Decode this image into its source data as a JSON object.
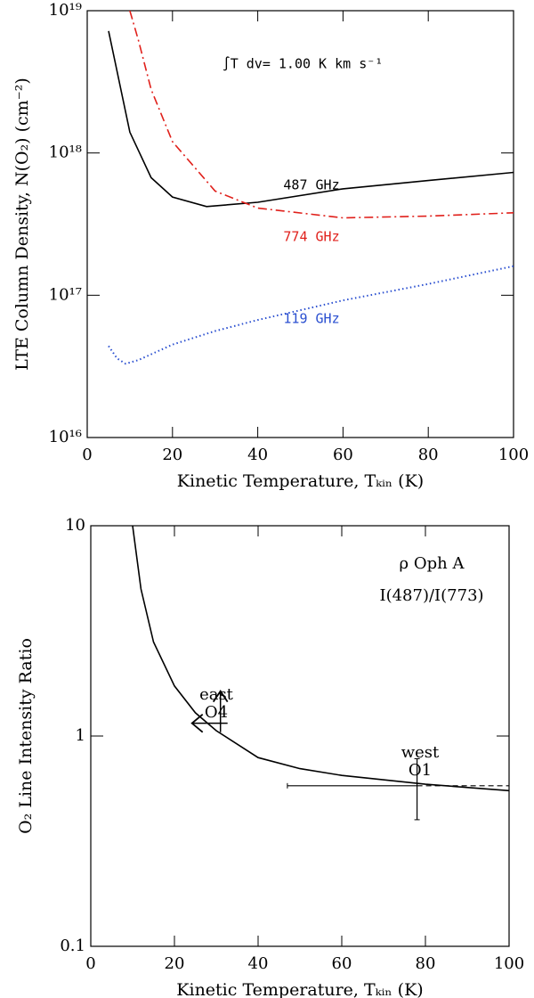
{
  "chart_data": [
    {
      "type": "line",
      "log_y": true,
      "xlabel": "Kinetic Temperature, Tₖᵢₙ (K)",
      "ylabel": "LTE Column Density, N(O₂) (cm⁻²)",
      "xlim": [
        0,
        100
      ],
      "xticks": [
        0,
        20,
        40,
        60,
        80,
        100
      ],
      "ylim": [
        1e+16,
        1e+19
      ],
      "yticks": [
        {
          "value": 1e+16,
          "label": "10¹⁶"
        },
        {
          "value": 1e+17,
          "label": "10¹⁷"
        },
        {
          "value": 1e+18,
          "label": "10¹⁸"
        },
        {
          "value": 1e+19,
          "label": "10¹⁹"
        }
      ],
      "annotations": [
        "∫T dv= 1.00 K km s⁻¹",
        "487 GHz",
        "774 GHz",
        "119 GHz"
      ],
      "series": [
        {
          "name": "487 GHz",
          "color": "#000000",
          "dash": "solid",
          "x": [
            5,
            10,
            15,
            20,
            28,
            40,
            60,
            80,
            100
          ],
          "values": [
            7.2e+18,
            1.4e+18,
            6.7e+17,
            4.9e+17,
            4.2e+17,
            4.5e+17,
            5.6e+17,
            6.4e+17,
            7.3e+17
          ]
        },
        {
          "name": "774 GHz",
          "color": "#e0201b",
          "dash": "dashed",
          "x": [
            10,
            12,
            15,
            20,
            30,
            40,
            60,
            80,
            100
          ],
          "values": [
            1e+19,
            6.2e+18,
            2.8e+18,
            1.2e+18,
            5.4e+17,
            4.1e+17,
            3.5e+17,
            3.6e+17,
            3.8e+17
          ]
        },
        {
          "name": "119 GHz",
          "color": "#2a4fd0",
          "dash": "dotted",
          "x": [
            5,
            7,
            9,
            12,
            20,
            30,
            40,
            60,
            80,
            100
          ],
          "values": [
            4.4e+16,
            3.6e+16,
            3.3e+16,
            3.5e+16,
            4.5e+16,
            5.6e+16,
            6.7e+16,
            9.2e+16,
            1.2e+17,
            1.6e+17
          ]
        }
      ]
    },
    {
      "type": "line",
      "log_y": true,
      "xlabel": "Kinetic Temperature, Tₖᵢₙ (K)",
      "ylabel": "O₂ Line Intensity Ratio",
      "xlim": [
        0,
        100
      ],
      "xticks": [
        0,
        20,
        40,
        60,
        80,
        100
      ],
      "ylim": [
        0.1,
        10
      ],
      "yticks": [
        0.1,
        1,
        10
      ],
      "annotations": [
        "ρ Oph A",
        "I(487)/I(773)",
        "east",
        "O4",
        "west",
        "O1"
      ],
      "series": [
        {
          "color": "#000000",
          "dash": "solid",
          "x": [
            10,
            12,
            15,
            20,
            25,
            30,
            40,
            50,
            60,
            80,
            100
          ],
          "values": [
            10,
            5.0,
            2.8,
            1.73,
            1.29,
            1.06,
            0.79,
            0.7,
            0.65,
            0.59,
            0.55
          ]
        }
      ],
      "points": [
        {
          "x": 31,
          "y": 1.15,
          "x_limit": "upper",
          "y_limit": "lower"
        },
        {
          "x": 78,
          "y": 0.58,
          "xlow": 47,
          "x_limit": "lower",
          "ylow": 0.4,
          "yhigh": 0.78
        }
      ]
    }
  ]
}
